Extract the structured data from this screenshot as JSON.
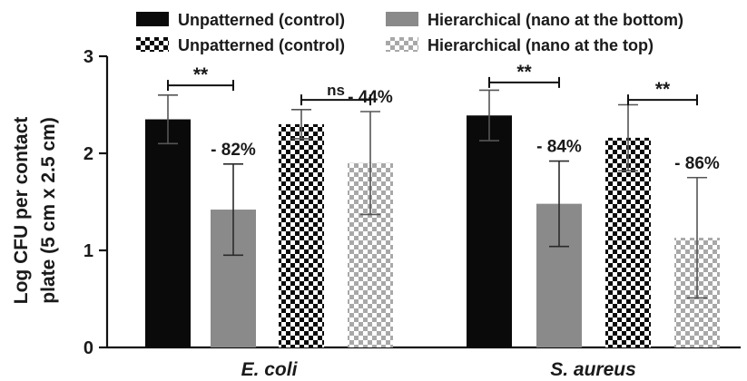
{
  "chart_data": {
    "type": "bar",
    "categories": [
      "E. coli",
      "S. aureus"
    ],
    "ylabel_lines": [
      "Log CFU per contact",
      "plate (5 cm x 2.5 cm)"
    ],
    "ylim": [
      0,
      3
    ],
    "yticks": [
      0,
      1,
      2,
      3
    ],
    "grid": false,
    "legend_position": "top",
    "series": [
      {
        "name": "Unpatterned (control)",
        "pattern": "solid",
        "color": "#0a0a0a",
        "values": [
          2.35,
          2.39
        ],
        "errors": [
          0.25,
          0.26
        ]
      },
      {
        "name": "Hierarchical (nano at the bottom)",
        "pattern": "solid",
        "color": "#8a8a8a",
        "values": [
          1.42,
          1.48
        ],
        "errors": [
          0.47,
          0.44
        ]
      },
      {
        "name": "Unpatterned (control)",
        "pattern": "checker",
        "color": "#0a0a0a",
        "values": [
          2.3,
          2.16
        ],
        "errors": [
          0.15,
          0.34
        ]
      },
      {
        "name": "Hierarchical (nano at the top)",
        "pattern": "checker",
        "color": "#a8a8a8",
        "values": [
          1.9,
          1.13
        ],
        "errors": [
          0.53,
          0.62
        ]
      }
    ],
    "percent_labels": [
      {
        "category": 0,
        "series": 1,
        "text": "- 82%"
      },
      {
        "category": 0,
        "series": 3,
        "text": "- 44%"
      },
      {
        "category": 1,
        "series": 1,
        "text": "- 84%"
      },
      {
        "category": 1,
        "series": 3,
        "text": "- 86%"
      }
    ],
    "significance": [
      {
        "category": 0,
        "from_series": 0,
        "to_series": 1,
        "y": 2.7,
        "text": "**"
      },
      {
        "category": 0,
        "from_series": 2,
        "to_series": 3,
        "y": 2.55,
        "text": "ns"
      },
      {
        "category": 1,
        "from_series": 0,
        "to_series": 1,
        "y": 2.73,
        "text": "**"
      },
      {
        "category": 1,
        "from_series": 2,
        "to_series": 3,
        "y": 2.55,
        "text": "**"
      }
    ]
  }
}
